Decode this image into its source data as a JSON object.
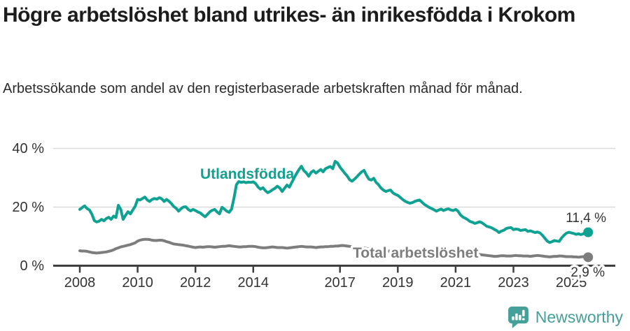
{
  "header": {
    "title": "Högre arbetslöshet bland utrikes- än inrikesfödda i Krokom",
    "subtitle": "Arbetssökande som andel av den registerbaserade arbetskraften månad för månad."
  },
  "chart_data": {
    "type": "line",
    "title": "Högre arbetslöshet bland utrikes- än inrikesfödda i Krokom",
    "subtitle": "Arbetssökande som andel av den registerbaserade arbetskraften månad för månad.",
    "unit": "%",
    "grid": "horizontal-only",
    "legend_position": "inline-labels-on-chart",
    "x_start_year": 2008,
    "x_step_months": 1,
    "x_end": "2025-08",
    "ylim": [
      0,
      40
    ],
    "y_ticks": [
      {
        "value": 0,
        "label": "0 %"
      },
      {
        "value": 20,
        "label": "20 %"
      },
      {
        "value": 40,
        "label": "40 %"
      }
    ],
    "x_ticks": [
      {
        "value": 2008,
        "label": "2008"
      },
      {
        "value": 2010,
        "label": "2010"
      },
      {
        "value": 2012,
        "label": "2012"
      },
      {
        "value": 2014,
        "label": "2014"
      },
      {
        "value": 2017,
        "label": "2017"
      },
      {
        "value": 2019,
        "label": "2019"
      },
      {
        "value": 2021,
        "label": "2021"
      },
      {
        "value": 2023,
        "label": "2023"
      },
      {
        "value": 2025,
        "label": "2025"
      }
    ],
    "series": [
      {
        "name": "Utlandsfödda",
        "color": "#0fa293",
        "end_value": 11.4,
        "end_label": "11,4 %",
        "values": [
          19.2,
          19.8,
          20.4,
          19.5,
          19.0,
          17.6,
          15.4,
          14.9,
          15.2,
          15.8,
          15.3,
          16.1,
          16.5,
          15.8,
          16.9,
          16.4,
          20.6,
          19.2,
          15.8,
          17.2,
          18.4,
          17.7,
          19.0,
          20.3,
          22.6,
          22.4,
          22.9,
          23.4,
          22.4,
          21.9,
          22.6,
          22.9,
          22.7,
          23.2,
          22.8,
          21.9,
          22.6,
          22.0,
          21.2,
          20.2,
          19.6,
          18.6,
          19.4,
          20.0,
          20.1,
          19.2,
          18.7,
          19.2,
          18.8,
          18.3,
          18.0,
          17.3,
          16.7,
          17.5,
          18.4,
          18.9,
          19.2,
          18.3,
          17.7,
          19.9,
          19.3,
          18.6,
          18.2,
          19.3,
          23.1,
          27.6,
          28.7,
          28.4,
          28.6,
          28.3,
          28.5,
          28.4,
          28.6,
          28.0,
          26.8,
          26.1,
          26.6,
          25.6,
          24.9,
          25.3,
          25.9,
          26.4,
          27.1,
          26.5,
          25.3,
          26.4,
          27.5,
          26.8,
          28.4,
          30.0,
          31.5,
          32.8,
          33.9,
          32.4,
          31.7,
          30.5,
          31.8,
          32.4,
          31.6,
          32.2,
          32.8,
          32.0,
          33.1,
          33.5,
          33.8,
          33.1,
          35.6,
          35.0,
          33.6,
          32.6,
          31.5,
          30.6,
          29.3,
          28.8,
          29.5,
          30.3,
          31.2,
          32.0,
          32.5,
          30.8,
          29.5,
          29.2,
          29.8,
          28.4,
          27.6,
          26.5,
          25.8,
          25.3,
          25.6,
          25.8,
          24.8,
          24.3,
          24.0,
          23.3,
          22.6,
          22.0,
          21.6,
          21.3,
          21.5,
          21.9,
          22.2,
          22.4,
          21.7,
          20.9,
          20.4,
          19.9,
          19.5,
          19.1,
          18.6,
          19.0,
          19.3,
          18.8,
          19.2,
          19.4,
          19.0,
          18.8,
          19.2,
          18.6,
          17.3,
          16.6,
          16.2,
          15.7,
          15.1,
          14.8,
          14.4,
          14.7,
          15.0,
          14.6,
          14.0,
          13.4,
          13.2,
          12.9,
          12.4,
          12.0,
          11.3,
          11.8,
          12.1,
          12.7,
          12.9,
          13.0,
          12.3,
          12.5,
          12.4,
          12.0,
          12.2,
          12.3,
          11.7,
          11.9,
          11.6,
          11.3,
          11.5,
          11.2,
          10.4,
          9.4,
          8.4,
          7.9,
          8.2,
          8.6,
          8.4,
          8.3,
          9.5,
          10.4,
          11.1,
          11.4,
          11.2,
          11.0,
          10.7,
          10.9,
          10.6,
          10.9,
          11.2,
          11.4
        ]
      },
      {
        "name": "Total arbetslöshet",
        "color": "#7d7d7d",
        "end_value": 2.9,
        "end_label": "2,9 %",
        "values": [
          5.1,
          5.0,
          5.0,
          4.9,
          4.7,
          4.5,
          4.4,
          4.3,
          4.4,
          4.5,
          4.6,
          4.7,
          4.9,
          5.1,
          5.4,
          5.8,
          6.1,
          6.4,
          6.6,
          6.8,
          7.0,
          7.2,
          7.5,
          7.8,
          8.4,
          8.7,
          8.9,
          9.0,
          9.0,
          8.9,
          8.7,
          8.6,
          8.6,
          8.7,
          8.7,
          8.5,
          8.2,
          8.0,
          7.7,
          7.4,
          7.3,
          7.2,
          7.1,
          7.0,
          6.8,
          6.7,
          6.5,
          6.3,
          6.2,
          6.3,
          6.4,
          6.3,
          6.4,
          6.5,
          6.5,
          6.4,
          6.3,
          6.4,
          6.5,
          6.6,
          6.6,
          6.7,
          6.8,
          6.7,
          6.6,
          6.5,
          6.4,
          6.4,
          6.5,
          6.5,
          6.6,
          6.6,
          6.6,
          6.5,
          6.3,
          6.2,
          6.1,
          6.1,
          6.2,
          6.3,
          6.4,
          6.3,
          6.2,
          6.2,
          6.2,
          6.1,
          6.0,
          6.1,
          6.2,
          6.3,
          6.4,
          6.5,
          6.6,
          6.5,
          6.4,
          6.4,
          6.4,
          6.3,
          6.2,
          6.3,
          6.4,
          6.4,
          6.5,
          6.5,
          6.6,
          6.6,
          6.7,
          6.7,
          6.8,
          6.9,
          6.8,
          6.7,
          6.6,
          6.5,
          6.4,
          6.3,
          6.2,
          6.1,
          6.0,
          5.9,
          5.8,
          5.7,
          5.6,
          5.5,
          5.4,
          5.3,
          5.2,
          5.1,
          5.0,
          4.9,
          4.9,
          4.8,
          4.8,
          4.7,
          4.6,
          4.6,
          4.5,
          4.5,
          4.6,
          4.6,
          4.7,
          4.7,
          4.8,
          4.9,
          5.0,
          5.2,
          5.4,
          5.6,
          5.6,
          5.5,
          5.4,
          5.3,
          5.2,
          5.1,
          5.0,
          4.9,
          4.8,
          4.7,
          4.6,
          4.5,
          4.4,
          4.3,
          4.2,
          4.1,
          4.0,
          3.9,
          3.8,
          3.7,
          3.6,
          3.5,
          3.4,
          3.3,
          3.2,
          3.2,
          3.3,
          3.4,
          3.4,
          3.3,
          3.3,
          3.3,
          3.4,
          3.5,
          3.4,
          3.4,
          3.3,
          3.3,
          3.3,
          3.2,
          3.3,
          3.4,
          3.5,
          3.4,
          3.3,
          3.2,
          3.1,
          3.0,
          3.1,
          3.2,
          3.2,
          3.3,
          3.3,
          3.2,
          3.1,
          3.1,
          3.1,
          3.0,
          3.0,
          2.9,
          3.0,
          3.1,
          3.0,
          2.9
        ]
      }
    ],
    "colors": {
      "accent_teal": "#0fa293",
      "line_gray": "#7d7d7d",
      "axis": "#3f3f3f",
      "gridline": "#dadada",
      "text": "#333333"
    }
  },
  "footer": {
    "brand": "Newsworthy",
    "logo_color": "#45a09a"
  }
}
